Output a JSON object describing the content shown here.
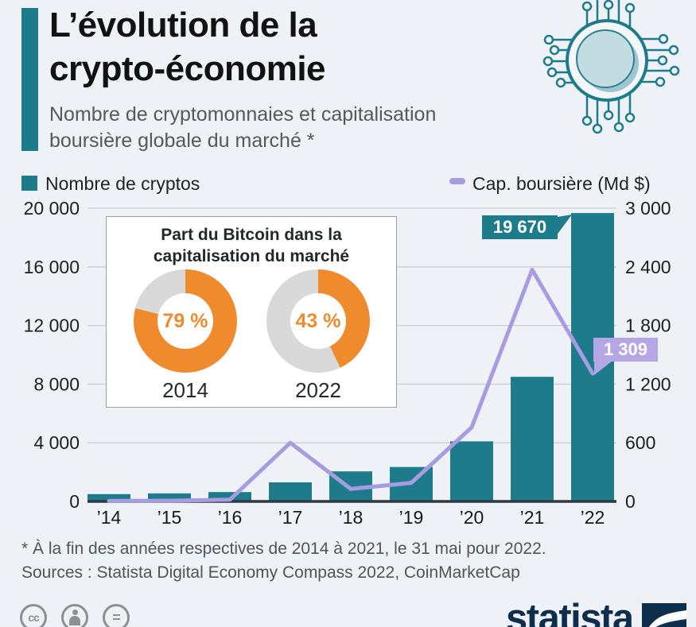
{
  "header": {
    "title_line1": "L’évolution de la",
    "title_line2": "crypto-économie",
    "subtitle_line1": "Nombre de cryptomonnaies et capitalisation",
    "subtitle_line2": "boursière globale du marché *"
  },
  "legend": {
    "bars_label": "Nombre de cryptos",
    "line_label": "Cap. boursière (Md $)"
  },
  "chart_data": {
    "type": "combo-bar-line",
    "categories": [
      "’14",
      "’15",
      "’16",
      "’17",
      "’18",
      "’19",
      "’20",
      "’21",
      "’22"
    ],
    "series": [
      {
        "name": "Nombre de cryptos",
        "type": "bar",
        "axis": "left",
        "values": [
          500,
          550,
          640,
          1300,
          2050,
          2350,
          4100,
          8500,
          19670
        ]
      },
      {
        "name": "Cap. boursière (Md $)",
        "type": "line",
        "axis": "right",
        "values": [
          5,
          7,
          18,
          600,
          128,
          190,
          758,
          2370,
          1309
        ]
      }
    ],
    "left_axis": {
      "max": 20000,
      "tick_labels": [
        "20 000",
        "16 000",
        "12 000",
        "8 000",
        "4 000",
        "0"
      ]
    },
    "right_axis": {
      "max": 3000,
      "tick_labels": [
        "3 000",
        "2 400",
        "1 800",
        "1 200",
        "600",
        "0"
      ]
    },
    "callouts": {
      "bar_value": "19 670",
      "line_value": "1 309"
    },
    "grid": true,
    "legend_position": "top"
  },
  "inset": {
    "title_line1": "Part du Bitcoin dans la",
    "title_line2": "capitalisation du marché",
    "donuts": [
      {
        "year": "2014",
        "value": 79,
        "label": "79 %"
      },
      {
        "year": "2022",
        "value": 43,
        "label": "43 %"
      }
    ]
  },
  "notes": {
    "footnote": "* À la fin des années respectives de 2014 à 2021, le 31 mai pour 2022.",
    "sources": "Sources : Statista Digital Economy Compass 2022, CoinMarketCap"
  },
  "footer": {
    "logo_text": "statista",
    "cc_equals_glyph": "=",
    "cc_glyph": "cc"
  },
  "colors": {
    "background": "#eef2f6",
    "bar": "#1e7b8c",
    "accent_bar": "#1e7b8c",
    "line": "#a89ce1",
    "line_label_bg": "#b5a6e6",
    "bar_label_bg": "#1e7b8c",
    "donut_orange": "#ef8a2d",
    "donut_gray": "#d9d9d9",
    "grid": "#c9ced3",
    "axis": "#2e3940",
    "logo_navy": "#0e2e4e"
  }
}
